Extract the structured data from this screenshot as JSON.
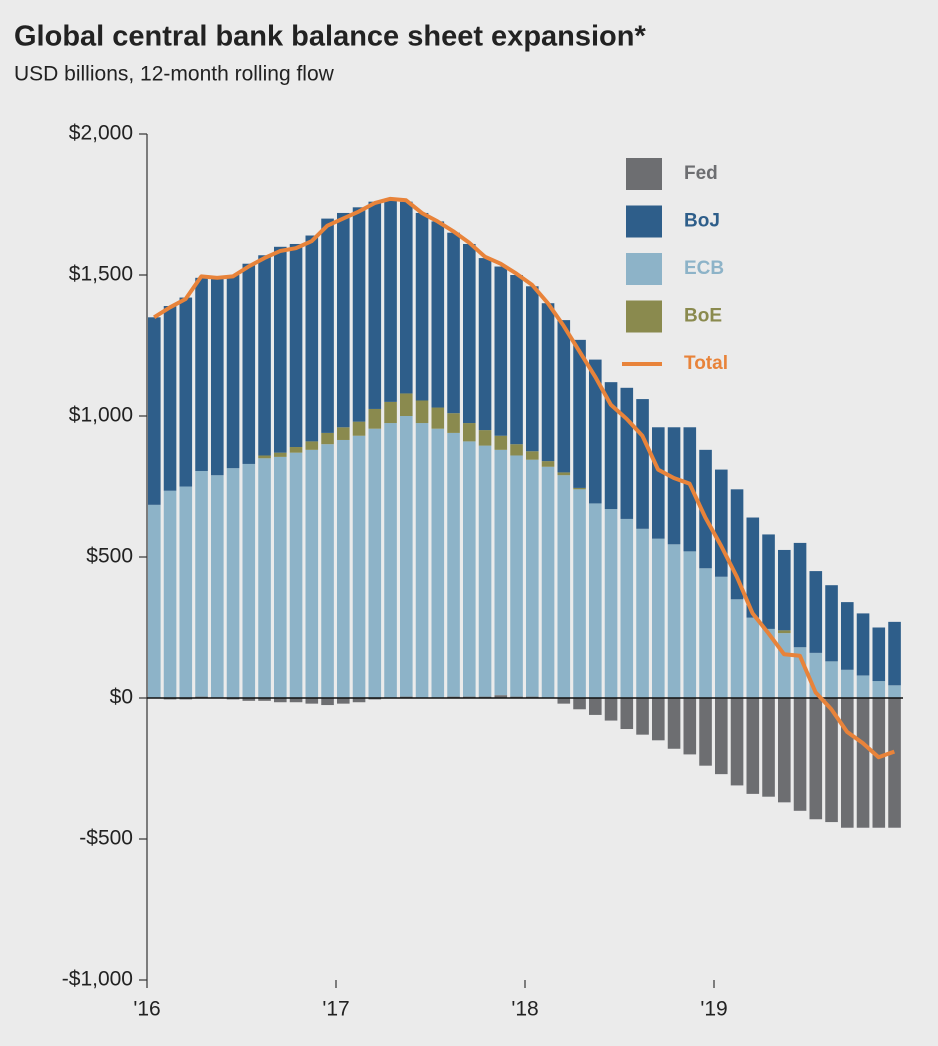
{
  "chart_data": {
    "type": "bar",
    "title": "Global central bank balance sheet expansion*",
    "subtitle": "USD billions, 12-month rolling flow",
    "categories": [
      "'16",
      null,
      null,
      null,
      null,
      null,
      null,
      null,
      null,
      null,
      null,
      null,
      "'17",
      null,
      null,
      null,
      null,
      null,
      null,
      null,
      null,
      null,
      null,
      null,
      "'18",
      null,
      null,
      null,
      null,
      null,
      null,
      null,
      null,
      null,
      null,
      null,
      "'19",
      null,
      null,
      null,
      null,
      null,
      null,
      null,
      null,
      null,
      null,
      null
    ],
    "series": [
      {
        "name": "Fed",
        "color": "#6d6e71",
        "values": [
          0,
          -5,
          -5,
          5,
          0,
          -5,
          -10,
          -10,
          -15,
          -15,
          -20,
          -25,
          -20,
          -15,
          -5,
          0,
          5,
          0,
          0,
          5,
          5,
          5,
          10,
          5,
          5,
          0,
          -20,
          -40,
          -60,
          -80,
          -110,
          -130,
          -150,
          -180,
          -200,
          -240,
          -270,
          -310,
          -340,
          -350,
          -370,
          -400,
          -430,
          -440,
          -460,
          -460,
          -460,
          -460
        ]
      },
      {
        "name": "BoJ",
        "color": "#2e5e8a",
        "values": [
          665,
          655,
          670,
          685,
          700,
          685,
          710,
          710,
          730,
          720,
          730,
          760,
          760,
          760,
          735,
          720,
          680,
          665,
          660,
          640,
          635,
          610,
          600,
          600,
          585,
          560,
          540,
          525,
          510,
          450,
          465,
          460,
          395,
          415,
          440,
          420,
          380,
          390,
          355,
          335,
          285,
          370,
          290,
          270,
          240,
          220,
          190,
          225
        ]
      },
      {
        "name": "ECB",
        "color": "#8db3c8",
        "values": [
          685,
          735,
          750,
          800,
          790,
          815,
          830,
          850,
          855,
          870,
          880,
          900,
          915,
          930,
          955,
          975,
          995,
          975,
          955,
          935,
          905,
          890,
          870,
          855,
          840,
          820,
          790,
          740,
          690,
          670,
          635,
          600,
          565,
          545,
          520,
          460,
          430,
          350,
          285,
          245,
          230,
          180,
          160,
          130,
          100,
          80,
          60,
          45
        ]
      },
      {
        "name": "BoE",
        "color": "#8a8a4e",
        "values": [
          0,
          0,
          0,
          0,
          0,
          0,
          0,
          10,
          15,
          20,
          30,
          40,
          45,
          50,
          70,
          75,
          80,
          80,
          75,
          70,
          65,
          55,
          50,
          40,
          30,
          20,
          10,
          5,
          0,
          0,
          0,
          0,
          0,
          0,
          0,
          0,
          0,
          0,
          0,
          0,
          10,
          0,
          0,
          0,
          0,
          0,
          0,
          0
        ]
      },
      {
        "name": "Total",
        "type": "line",
        "color": "#e8833a",
        "values": [
          1350,
          1385,
          1415,
          1495,
          1490,
          1495,
          1530,
          1560,
          1585,
          1595,
          1620,
          1675,
          1700,
          1725,
          1755,
          1770,
          1765,
          1720,
          1690,
          1655,
          1615,
          1565,
          1540,
          1505,
          1465,
          1400,
          1320,
          1230,
          1140,
          1040,
          990,
          930,
          810,
          780,
          760,
          640,
          540,
          430,
          300,
          230,
          155,
          150,
          20,
          -40,
          -120,
          -160,
          -210,
          -190
        ]
      }
    ],
    "ylim": [
      -1000,
      2000
    ],
    "yticks": [
      {
        "value": -1000,
        "label": "-$1,000"
      },
      {
        "value": -500,
        "label": "-$500"
      },
      {
        "value": 0,
        "label": "$0"
      },
      {
        "value": 500,
        "label": "$500"
      },
      {
        "value": 1000,
        "label": "$1,000"
      },
      {
        "value": 1500,
        "label": "$1,500"
      },
      {
        "value": 2000,
        "label": "$2,000"
      }
    ],
    "legend": "upper right"
  }
}
